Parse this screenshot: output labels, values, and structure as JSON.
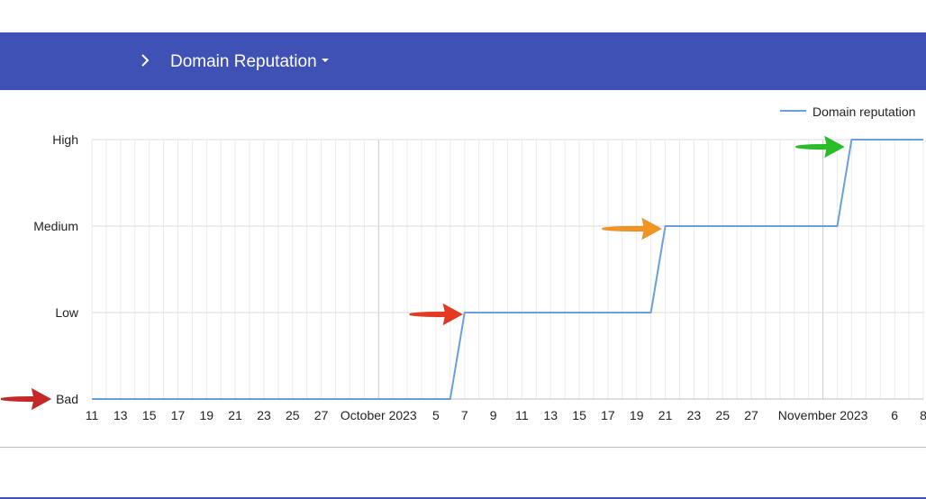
{
  "header": {
    "title": "Domain Reputation",
    "chevron_icon": "chevron-right-icon",
    "caret_icon": "caret-down-icon"
  },
  "colors": {
    "accent": "#3f51b5",
    "series": "#6a9fdb",
    "grid": "#e0e0e0",
    "arrow_bad": "#c62828",
    "arrow_low": "#e53920",
    "arrow_medium": "#f39320",
    "arrow_high": "#26c026"
  },
  "chart_data": {
    "type": "line",
    "series": [
      {
        "name": "Domain reputation",
        "points": [
          [
            "2023-09-11",
            "Bad"
          ],
          [
            "2023-10-06",
            "Bad"
          ],
          [
            "2023-10-07",
            "Low"
          ],
          [
            "2023-10-20",
            "Low"
          ],
          [
            "2023-10-21",
            "Medium"
          ],
          [
            "2023-11-02",
            "Medium"
          ],
          [
            "2023-11-03",
            "High"
          ],
          [
            "2023-11-08",
            "High"
          ]
        ]
      }
    ],
    "y_categories": [
      "Bad",
      "Low",
      "Medium",
      "High"
    ],
    "x_range": [
      "2023-09-11",
      "2023-11-08"
    ],
    "x_tick_labels": [
      [
        "2023-09-11",
        "11"
      ],
      [
        "2023-09-13",
        "13"
      ],
      [
        "2023-09-15",
        "15"
      ],
      [
        "2023-09-17",
        "17"
      ],
      [
        "2023-09-19",
        "19"
      ],
      [
        "2023-09-21",
        "21"
      ],
      [
        "2023-09-23",
        "23"
      ],
      [
        "2023-09-25",
        "25"
      ],
      [
        "2023-09-27",
        "27"
      ],
      [
        "2023-10-01",
        "October 2023"
      ],
      [
        "2023-10-05",
        "5"
      ],
      [
        "2023-10-07",
        "7"
      ],
      [
        "2023-10-09",
        "9"
      ],
      [
        "2023-10-11",
        "11"
      ],
      [
        "2023-10-13",
        "13"
      ],
      [
        "2023-10-15",
        "15"
      ],
      [
        "2023-10-17",
        "17"
      ],
      [
        "2023-10-19",
        "19"
      ],
      [
        "2023-10-21",
        "21"
      ],
      [
        "2023-10-23",
        "23"
      ],
      [
        "2023-10-25",
        "25"
      ],
      [
        "2023-10-27",
        "27"
      ],
      [
        "2023-11-01",
        "November 2023"
      ],
      [
        "2023-11-06",
        "6"
      ],
      [
        "2023-11-08",
        "8"
      ]
    ],
    "grid": true,
    "legend_position": "top-right",
    "annotations": [
      {
        "type": "arrow",
        "points_to": "Bad y-axis label",
        "color": "dark-red"
      },
      {
        "type": "arrow",
        "points_to": [
          "2023-10-07",
          "Low"
        ],
        "color": "red"
      },
      {
        "type": "arrow",
        "points_to": [
          "2023-10-21",
          "Medium"
        ],
        "color": "orange"
      },
      {
        "type": "arrow",
        "points_to": [
          "2023-11-03",
          "High"
        ],
        "color": "green"
      }
    ]
  }
}
